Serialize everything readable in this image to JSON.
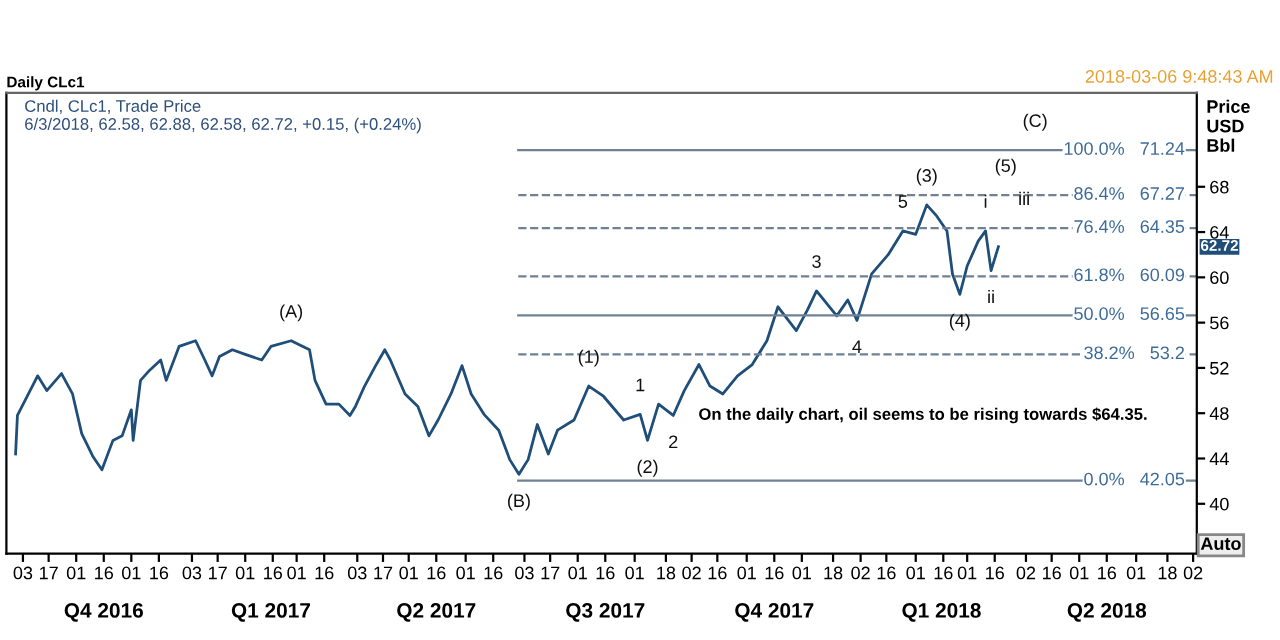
{
  "chart_data": {
    "type": "line",
    "title": "Daily CLc1",
    "subtitle": "Cndl, CLc1, Trade Price\n6/3/2018, 62.58, 62.88, 62.58, 62.72, +0.15, (+0.24%)",
    "ylabel": "Price\nUSD\nBbl",
    "x": [
      "2016-09-29",
      "2016-09-30",
      "2016-10-11",
      "2016-10-16",
      "2016-10-24",
      "2016-10-30",
      "2016-11-04",
      "2016-11-10",
      "2016-11-15",
      "2016-11-21",
      "2016-11-26",
      "2016-12-01",
      "2016-12-02",
      "2016-12-06",
      "2016-12-11",
      "2016-12-17",
      "2016-12-20",
      "2016-12-27",
      "2017-01-05",
      "2017-01-10",
      "2017-01-14",
      "2017-01-18",
      "2017-01-25",
      "2017-02-01",
      "2017-02-10",
      "2017-02-15",
      "2017-02-26",
      "2017-03-08",
      "2017-03-11",
      "2017-03-17",
      "2017-03-24",
      "2017-03-30",
      "2017-04-02",
      "2017-04-07",
      "2017-04-13",
      "2017-04-18",
      "2017-04-21",
      "2017-04-29",
      "2017-05-06",
      "2017-05-12",
      "2017-05-17",
      "2017-05-24",
      "2017-05-30",
      "2017-06-04",
      "2017-06-11",
      "2017-06-19",
      "2017-06-25",
      "2017-06-30",
      "2017-07-05",
      "2017-07-10",
      "2017-07-16",
      "2017-07-21",
      "2017-07-30",
      "2017-08-07",
      "2017-08-15",
      "2017-08-26",
      "2017-09-04",
      "2017-09-08",
      "2017-09-14",
      "2017-09-22",
      "2017-09-28",
      "2017-10-06",
      "2017-10-12",
      "2017-10-19",
      "2017-10-27",
      "2017-11-04",
      "2017-11-12",
      "2017-11-18",
      "2017-11-28",
      "2017-12-04",
      "2017-12-09",
      "2017-12-20",
      "2017-12-26",
      "2017-12-31",
      "2018-01-08",
      "2018-01-17",
      "2018-01-25",
      "2018-02-01",
      "2018-02-07",
      "2018-02-12",
      "2018-02-18",
      "2018-02-21",
      "2018-02-25",
      "2018-03-01",
      "2018-03-07",
      "2018-03-11",
      "2018-03-14",
      "2018-03-18"
    ],
    "series": [
      {
        "color": "#1f4e79",
        "values": [
          44.4,
          47.8,
          51.3,
          50.0,
          51.5,
          49.7,
          46.2,
          44.2,
          43.0,
          45.6,
          46.0,
          48.3,
          45.6,
          50.9,
          51.8,
          52.7,
          50.9,
          53.9,
          54.4,
          52.7,
          51.3,
          53.0,
          53.6,
          53.2,
          52.7,
          53.9,
          54.4,
          53.6,
          50.9,
          48.8,
          48.8,
          47.8,
          48.6,
          50.4,
          52.2,
          53.6,
          52.7,
          49.7,
          48.6,
          46.0,
          47.4,
          49.7,
          52.2,
          49.7,
          47.9,
          46.5,
          43.9,
          42.6,
          43.9,
          47.0,
          44.4,
          46.5,
          47.4,
          50.4,
          49.5,
          47.4,
          47.9,
          45.6,
          48.8,
          47.8,
          50.0,
          52.3,
          50.4,
          49.7,
          51.3,
          52.3,
          54.4,
          57.4,
          55.3,
          57.1,
          58.8,
          56.6,
          58.0,
          56.2,
          60.3,
          62.0,
          64.1,
          63.8,
          66.4,
          65.5,
          64.1,
          60.3,
          58.5,
          61.0,
          63.2,
          64.1,
          60.6,
          62.7
        ]
      }
    ],
    "marker": "none",
    "line_style": "solid",
    "grid": false,
    "legend": false,
    "xlim": [
      "2016-09-24",
      "2018-07-04"
    ],
    "ylim": [
      35.6,
      76.3
    ],
    "yticks": [
      40,
      44,
      48,
      52,
      56,
      60,
      64,
      68
    ],
    "xticks": [
      {
        "value": "2016-10-03",
        "label": "03"
      },
      {
        "value": "2016-10-17",
        "label": "17"
      },
      {
        "value": "2016-11-01",
        "label": "01"
      },
      {
        "value": "2016-11-16",
        "label": "16"
      },
      {
        "value": "2016-12-01",
        "label": "01"
      },
      {
        "value": "2016-12-16",
        "label": "16"
      },
      {
        "value": "2017-01-03",
        "label": "03"
      },
      {
        "value": "2017-01-17",
        "label": "17"
      },
      {
        "value": "2017-02-01",
        "label": "01"
      },
      {
        "value": "2017-02-16",
        "label": "16"
      },
      {
        "value": "2017-03-01",
        "label": "01"
      },
      {
        "value": "2017-03-16",
        "label": "16"
      },
      {
        "value": "2017-04-03",
        "label": "03"
      },
      {
        "value": "2017-04-17",
        "label": "17"
      },
      {
        "value": "2017-05-01",
        "label": "01"
      },
      {
        "value": "2017-05-16",
        "label": "16"
      },
      {
        "value": "2017-06-01",
        "label": "01"
      },
      {
        "value": "2017-06-16",
        "label": "16"
      },
      {
        "value": "2017-07-03",
        "label": "03"
      },
      {
        "value": "2017-07-17",
        "label": "17"
      },
      {
        "value": "2017-08-01",
        "label": "01"
      },
      {
        "value": "2017-08-16",
        "label": "16"
      },
      {
        "value": "2017-09-01",
        "label": "01"
      },
      {
        "value": "2017-09-18",
        "label": "18"
      },
      {
        "value": "2017-10-02",
        "label": "02"
      },
      {
        "value": "2017-10-16",
        "label": "16"
      },
      {
        "value": "2017-11-01",
        "label": "01"
      },
      {
        "value": "2017-11-16",
        "label": "16"
      },
      {
        "value": "2017-12-01",
        "label": "01"
      },
      {
        "value": "2017-12-18",
        "label": "18"
      },
      {
        "value": "2018-01-02",
        "label": "02"
      },
      {
        "value": "2018-01-16",
        "label": "16"
      },
      {
        "value": "2018-02-01",
        "label": "01"
      },
      {
        "value": "2018-02-16",
        "label": "16"
      },
      {
        "value": "2018-03-01",
        "label": "01"
      },
      {
        "value": "2018-03-16",
        "label": "16"
      },
      {
        "value": "2018-04-02",
        "label": "02"
      },
      {
        "value": "2018-04-16",
        "label": "16"
      },
      {
        "value": "2018-05-01",
        "label": "01"
      },
      {
        "value": "2018-05-16",
        "label": "16"
      },
      {
        "value": "2018-06-01",
        "label": "01"
      },
      {
        "value": "2018-06-18",
        "label": "18"
      },
      {
        "value": "2018-07-02",
        "label": "02"
      }
    ],
    "x2lim": [
      "2016-09-24",
      "2018-07-04"
    ],
    "x2ticks": [
      {
        "value": "2016-11-16",
        "label": "Q4 2016"
      },
      {
        "value": "2017-02-15",
        "label": "Q1 2017"
      },
      {
        "value": "2017-05-16",
        "label": "Q2 2017"
      },
      {
        "value": "2017-08-16",
        "label": "Q3 2017"
      },
      {
        "value": "2017-11-16",
        "label": "Q4 2017"
      },
      {
        "value": "2018-02-15",
        "label": "Q1 2018"
      },
      {
        "value": "2018-05-16",
        "label": "Q2 2018"
      }
    ],
    "ref_lines": [
      {
        "axis": "y",
        "value": 71.24,
        "label": "100.0%   71.24",
        "line_style": "solid",
        "color": "#6f8193"
      },
      {
        "axis": "y",
        "value": 67.27,
        "label": "86.4%   67.27",
        "line_style": "dashed",
        "color": "#6f8193"
      },
      {
        "axis": "y",
        "value": 64.35,
        "label": "76.4%   64.35",
        "line_style": "dashed",
        "color": "#6f8193"
      },
      {
        "axis": "y",
        "value": 60.09,
        "label": "61.8%   60.09",
        "line_style": "dashed",
        "color": "#6f8193"
      },
      {
        "axis": "y",
        "value": 56.65,
        "label": "50.0%   56.65",
        "line_style": "solid",
        "color": "#6f8193"
      },
      {
        "axis": "y",
        "value": 53.2,
        "label": "38.2%   53.2",
        "line_style": "dashed",
        "color": "#6f8193"
      },
      {
        "axis": "y",
        "value": 42.05,
        "label": "0.0%   42.05",
        "line_style": "solid",
        "color": "#6f8193"
      }
    ],
    "annotations": [
      {
        "text": "(A)",
        "x": "2017-02-26",
        "y": 54.4
      },
      {
        "text": "(B)",
        "x": "2017-06-30",
        "y": 42.6
      },
      {
        "text": "(1)",
        "x": "2017-08-07",
        "y": 50.4
      },
      {
        "text": "1",
        "x": "2017-09-04",
        "y": 47.9
      },
      {
        "text": "(2)",
        "x": "2017-09-08",
        "y": 45.6
      },
      {
        "text": "2",
        "x": "2017-09-22",
        "y": 47.8
      },
      {
        "text": "3",
        "x": "2017-12-09",
        "y": 58.8
      },
      {
        "text": "4",
        "x": "2017-12-31",
        "y": 56.2
      },
      {
        "text": "5",
        "x": "2018-01-25",
        "y": 64.1
      },
      {
        "text": "(3)",
        "x": "2018-02-07",
        "y": 66.4
      },
      {
        "text": "(4)",
        "x": "2018-02-25",
        "y": 58.5
      },
      {
        "text": "i",
        "x": "2018-03-11",
        "y": 64.1
      },
      {
        "text": "ii",
        "x": "2018-03-14",
        "y": 60.6
      },
      {
        "text": "(5)",
        "x": "2018-03-22",
        "y": 67.27
      },
      {
        "text": "iii",
        "x": "2018-04-01",
        "y": 64.35
      },
      {
        "text": "(C)",
        "x": "2018-04-07",
        "y": 71.24
      },
      "On the daily chart, oil seems to be rising towards $64.35.",
      "2018-03-06 9:48:43 AM",
      "62.72",
      "Auto"
    ]
  }
}
